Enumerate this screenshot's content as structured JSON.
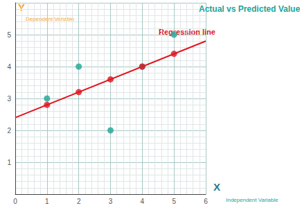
{
  "chart_data": {
    "type": "scatter",
    "title": "Actual vs Predicted Value",
    "xlabel": "X",
    "ylabel": "Y",
    "annotations": [
      "Dependent Variable",
      "Independent Variable"
    ],
    "xlim": [
      0,
      6
    ],
    "xticks": [
      0,
      1,
      2,
      3,
      4,
      5,
      6
    ],
    "ylim": [
      0,
      6
    ],
    "yticks": [
      1,
      2,
      3,
      4,
      5
    ],
    "grid": true,
    "series": [
      {
        "type": "line",
        "name": "Regression line",
        "color": "#e0141e",
        "line_style": "solid",
        "x": [
          0,
          6
        ],
        "values": [
          2.4,
          4.8
        ]
      },
      {
        "type": "scatter",
        "color": "#1ea594",
        "marker": "circle",
        "x": [
          1,
          2,
          3,
          4,
          5
        ],
        "values": [
          3,
          4,
          2,
          4,
          5
        ]
      },
      {
        "type": "scatter",
        "color": "#e0141e",
        "marker": "circle",
        "x": [
          1,
          2,
          3,
          4,
          5
        ],
        "values": [
          2.8,
          3.2,
          3.6,
          4.0,
          4.4
        ]
      }
    ]
  }
}
